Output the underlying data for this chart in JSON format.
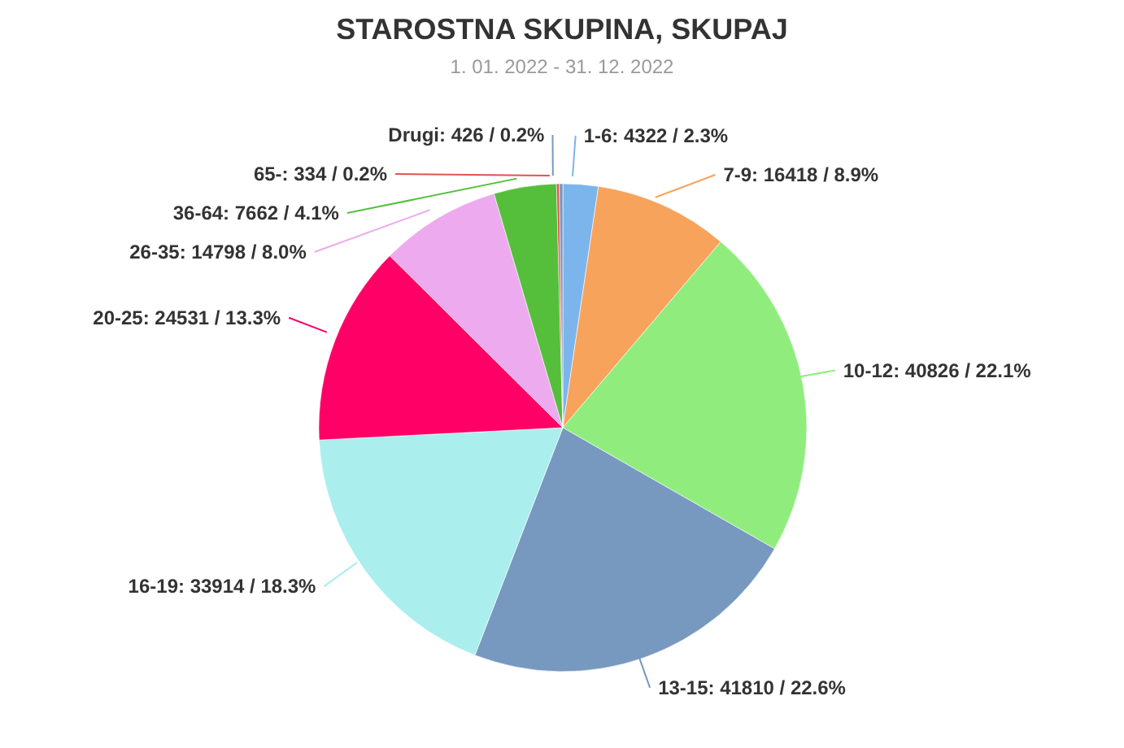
{
  "chart_data": {
    "type": "pie",
    "title": "STAROSTNA SKUPINA, SKUPAJ",
    "subtitle": "1. 01. 2022 - 31. 12. 2022",
    "categories": [
      "1-6",
      "7-9",
      "10-12",
      "13-15",
      "16-19",
      "20-25",
      "26-35",
      "36-64",
      "65-",
      "Drugi"
    ],
    "values": [
      4322,
      16418,
      40826,
      41810,
      33914,
      24531,
      14798,
      7662,
      334,
      426
    ],
    "value_labels": [
      "4322 / 2.3%",
      "16418 / 8.9%",
      "40826 / 22.1%",
      "41810 / 22.6%",
      "33914 / 18.3%",
      "24531 / 13.3%",
      "14798 / 8.0%",
      "7662 / 4.1%",
      "334 / 0.2%",
      "426 / 0.2%"
    ],
    "colors": [
      "#7cb5ec",
      "#f7a35c",
      "#90ed7d",
      "#7798bf",
      "#aaeeee",
      "#ff0066",
      "#eeaaee",
      "#55bf3b",
      "#df5353",
      "#7798bf"
    ]
  }
}
